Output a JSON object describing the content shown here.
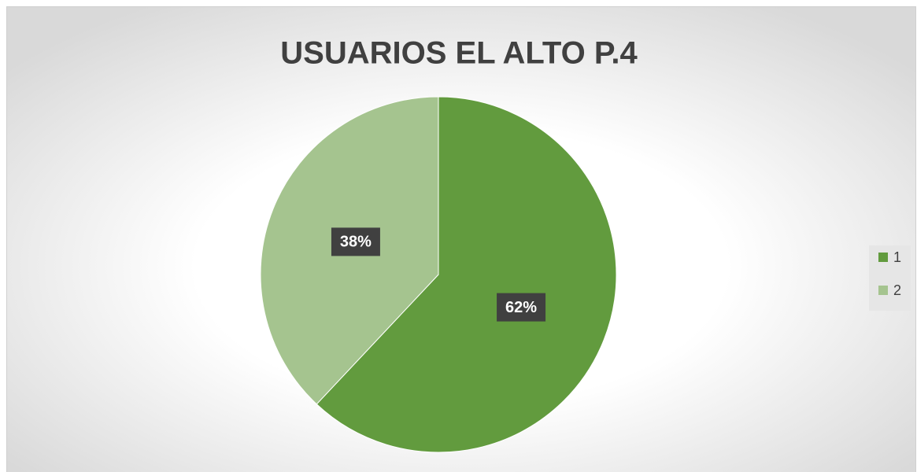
{
  "chart_data": {
    "type": "pie",
    "title": "USUARIOS EL ALTO P.4",
    "categories": [
      "1",
      "2"
    ],
    "values": [
      62,
      38
    ],
    "value_labels": [
      "62%",
      "38%"
    ],
    "colors": [
      "#629b3e",
      "#a5c48f"
    ],
    "legend": "right"
  }
}
